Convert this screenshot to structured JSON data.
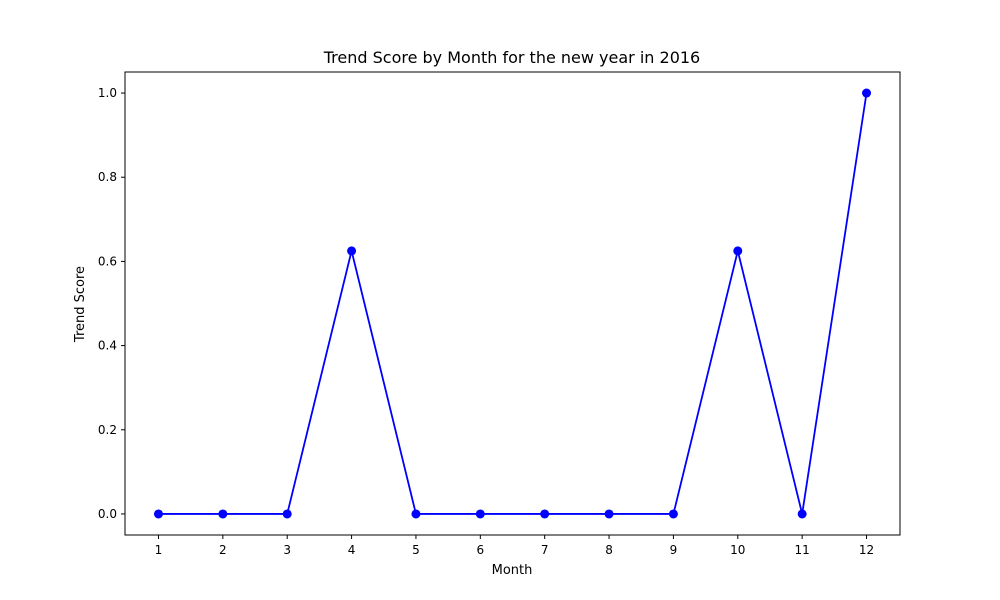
{
  "chart_data": {
    "type": "line",
    "title": "Trend Score by Month for the new year in 2016",
    "xlabel": "Month",
    "ylabel": "Trend Score",
    "x": [
      1,
      2,
      3,
      4,
      5,
      6,
      7,
      8,
      9,
      10,
      11,
      12
    ],
    "xticks": [
      "1",
      "2",
      "3",
      "4",
      "5",
      "6",
      "7",
      "8",
      "9",
      "10",
      "11",
      "12"
    ],
    "yticks": [
      "0.0",
      "0.2",
      "0.4",
      "0.6",
      "0.8",
      "1.0"
    ],
    "xlim": [
      0.48,
      12.52
    ],
    "ylim": [
      -0.05,
      1.05
    ],
    "grid": false,
    "series": [
      {
        "values": [
          0,
          0,
          0,
          0.625,
          0,
          0,
          0,
          0,
          0,
          0.625,
          0,
          1.0
        ],
        "color": "#0000ff",
        "marker": "circle"
      }
    ]
  }
}
